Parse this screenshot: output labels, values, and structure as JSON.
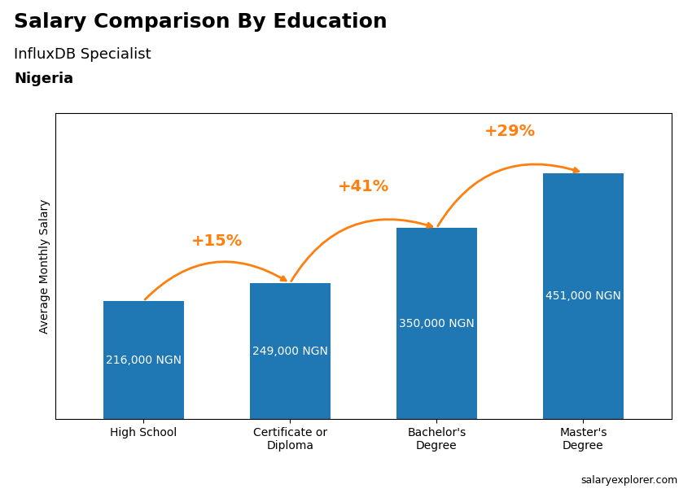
{
  "chart_data": {
    "type": "bar",
    "title": "Salary Comparison By Education",
    "subtitle": "InfluxDB Specialist",
    "country": "Nigeria",
    "source": "salaryexplorer.com",
    "ylabel": "Average Monthly Salary",
    "categories": [
      "High School",
      "Certificate or\nDiploma",
      "Bachelor's\nDegree",
      "Master's\nDegree"
    ],
    "values": [
      216000,
      249000,
      350000,
      451000
    ],
    "value_labels": [
      "216,000 NGN",
      "249,000 NGN",
      "350,000 NGN",
      "451,000 NGN"
    ],
    "annotations": [
      "+15%",
      "+41%",
      "+29%"
    ],
    "ylim": [
      0,
      560000
    ],
    "tick_labels": "x",
    "data_labels": true,
    "grid": false
  }
}
